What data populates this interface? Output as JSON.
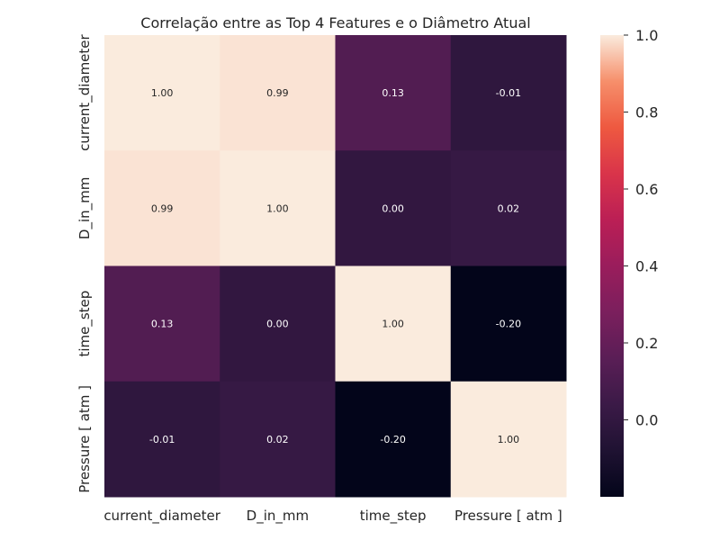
{
  "chart_data": {
    "type": "heatmap",
    "title": "Correlação entre as Top 4 Features e o Diâmetro Atual",
    "row_labels": [
      "current_diameter",
      "D_in_mm",
      "time_step",
      "Pressure [ atm ]"
    ],
    "col_labels": [
      "current_diameter",
      "D_in_mm",
      "time_step",
      "Pressure [ atm ]"
    ],
    "values": [
      [
        1.0,
        0.99,
        0.13,
        -0.01
      ],
      [
        0.99,
        1.0,
        0.0,
        0.02
      ],
      [
        0.13,
        0.0,
        1.0,
        -0.2
      ],
      [
        -0.01,
        0.02,
        -0.2,
        1.0
      ]
    ],
    "value_format": "0.00",
    "colorbar": {
      "colormap": "rocket",
      "vmin": -0.2,
      "vmax": 1.0,
      "ticks": [
        "0.0",
        "0.2",
        "0.4",
        "0.6",
        "0.8",
        "1.0"
      ]
    },
    "colors": {
      "low": "#03051a",
      "high": "#faebdd",
      "text_dark": "#262626",
      "text_light": "#ffffff"
    }
  }
}
